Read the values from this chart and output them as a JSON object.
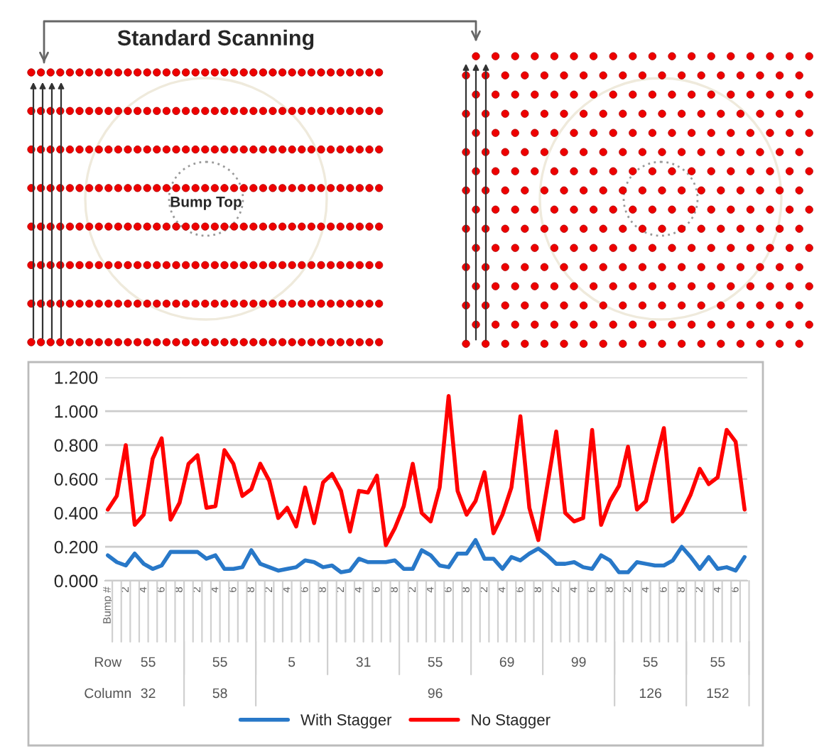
{
  "chart_data": {
    "type": "line",
    "categories": [
      "Bump #",
      null,
      "2",
      null,
      "4",
      null,
      "6",
      null,
      "8",
      null,
      "2",
      null,
      "4",
      null,
      "6",
      null,
      "8",
      null,
      "2",
      null,
      "4",
      null,
      "6",
      null,
      "8",
      null,
      "2",
      null,
      "4",
      null,
      "6",
      null,
      "8",
      null,
      "2",
      null,
      "4",
      null,
      "6",
      null,
      "8",
      null,
      "2",
      null,
      "4",
      null,
      "6",
      null,
      "8",
      null,
      "2",
      null,
      "4",
      null,
      "6",
      null,
      "8",
      null,
      "2",
      null,
      "4",
      null,
      "6",
      null,
      "8",
      null,
      "2",
      null,
      "4",
      null,
      "6",
      null
    ],
    "series": [
      {
        "name": "With Stagger",
        "color": "#2878c8",
        "values": [
          0.15,
          0.11,
          0.09,
          0.16,
          0.1,
          0.07,
          0.09,
          0.17,
          0.17,
          0.17,
          0.17,
          0.13,
          0.15,
          0.07,
          0.07,
          0.08,
          0.18,
          0.1,
          0.08,
          0.06,
          0.07,
          0.08,
          0.12,
          0.11,
          0.08,
          0.09,
          0.05,
          0.06,
          0.13,
          0.11,
          0.11,
          0.11,
          0.12,
          0.07,
          0.07,
          0.18,
          0.15,
          0.09,
          0.08,
          0.16,
          0.16,
          0.24,
          0.13,
          0.13,
          0.07,
          0.14,
          0.12,
          0.16,
          0.19,
          0.15,
          0.1,
          0.1,
          0.11,
          0.08,
          0.07,
          0.15,
          0.12,
          0.05,
          0.05,
          0.11,
          0.1,
          0.09,
          0.09,
          0.12,
          0.2,
          0.14,
          0.07,
          0.14,
          0.07,
          0.08,
          0.06,
          0.14
        ]
      },
      {
        "name": "No Stagger",
        "color": "#ff0000",
        "values": [
          0.42,
          0.5,
          0.8,
          0.33,
          0.39,
          0.72,
          0.84,
          0.36,
          0.46,
          0.69,
          0.74,
          0.43,
          0.44,
          0.77,
          0.69,
          0.5,
          0.54,
          0.69,
          0.59,
          0.37,
          0.43,
          0.32,
          0.55,
          0.34,
          0.58,
          0.63,
          0.53,
          0.29,
          0.53,
          0.52,
          0.62,
          0.21,
          0.31,
          0.44,
          0.69,
          0.4,
          0.35,
          0.55,
          1.09,
          0.53,
          0.39,
          0.47,
          0.64,
          0.28,
          0.39,
          0.55,
          0.97,
          0.43,
          0.24,
          0.56,
          0.88,
          0.4,
          0.35,
          0.37,
          0.89,
          0.33,
          0.47,
          0.56,
          0.79,
          0.42,
          0.47,
          0.69,
          0.9,
          0.35,
          0.4,
          0.51,
          0.66,
          0.57,
          0.61,
          0.89,
          0.82,
          0.42
        ]
      }
    ],
    "ylim": [
      0,
      1.2
    ],
    "yticks": [
      {
        "value": 0,
        "label": "0.000"
      },
      {
        "value": 0.2,
        "label": "0.200"
      },
      {
        "value": 0.4,
        "label": "0.400"
      },
      {
        "value": 0.6,
        "label": "0.600"
      },
      {
        "value": 0.8,
        "label": "0.800"
      },
      {
        "value": 1.0,
        "label": "1.000"
      },
      {
        "value": 1.2,
        "label": "1.200"
      }
    ],
    "grid": "y",
    "legend": "bottom",
    "marker": "none",
    "line_style": "solid",
    "annotations": [
      "Standard Scanning",
      "Bump Top",
      "Row",
      "Column",
      "55",
      "55",
      "5",
      "31",
      "55",
      "69",
      "99",
      "55",
      "55",
      "32",
      "58",
      "96",
      "126",
      "152"
    ]
  }
}
